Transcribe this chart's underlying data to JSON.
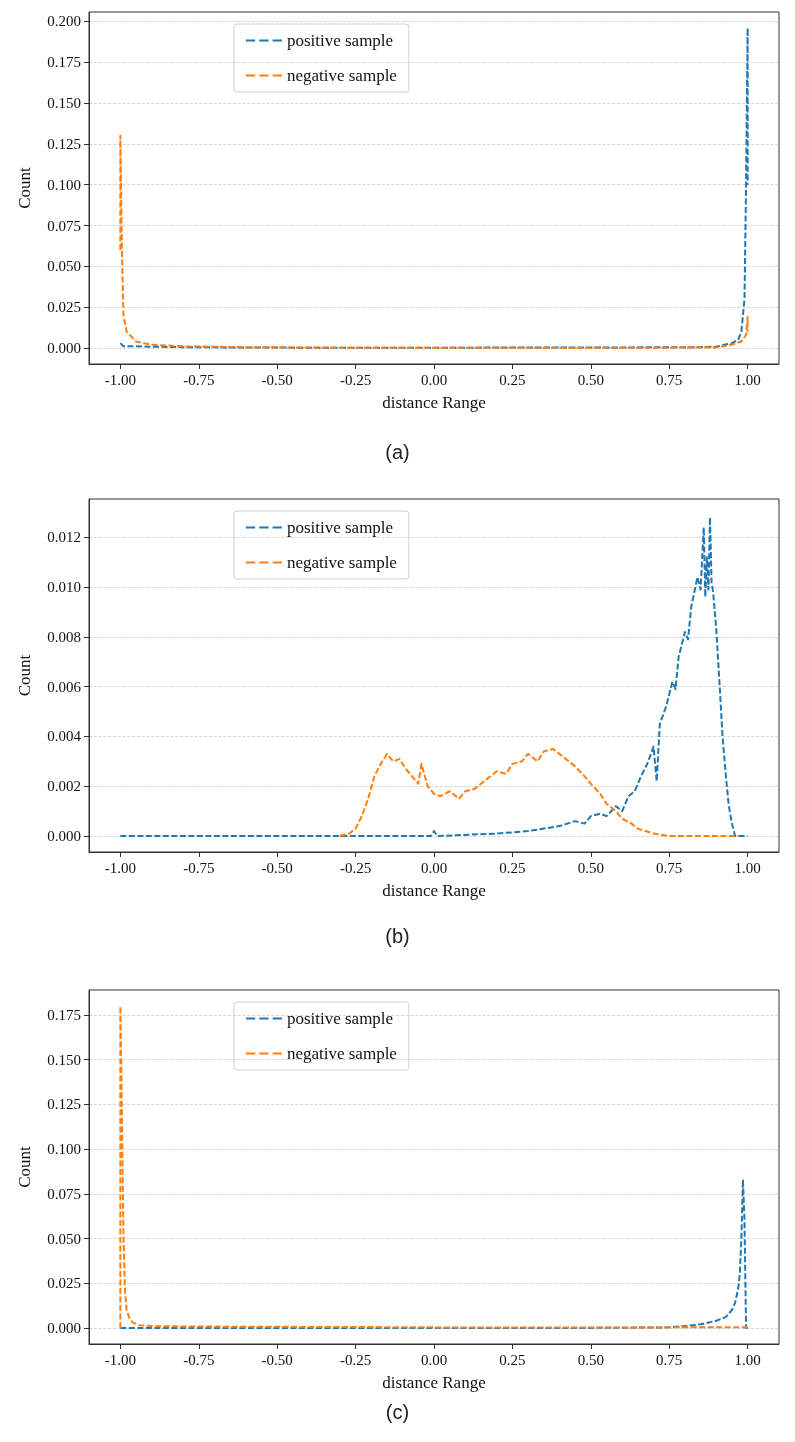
{
  "chart_data": [
    {
      "type": "line",
      "xlabel": "distance Range",
      "ylabel": "Count",
      "annotations": [
        "(a)"
      ],
      "legend": "top left",
      "grid": "y",
      "line_style": "dashed",
      "marker": "none",
      "xlim": [
        -1.1,
        1.1
      ],
      "ylim": [
        -0.0098,
        0.2058
      ],
      "xticks": [
        {
          "value": -1,
          "label": "-1.00"
        },
        {
          "value": -0.75,
          "label": "-0.75"
        },
        {
          "value": -0.5,
          "label": "-0.50"
        },
        {
          "value": -0.25,
          "label": "-0.25"
        },
        {
          "value": 0,
          "label": "0.00"
        },
        {
          "value": 0.25,
          "label": "0.25"
        },
        {
          "value": 0.5,
          "label": "0.50"
        },
        {
          "value": 0.75,
          "label": "0.75"
        },
        {
          "value": 1,
          "label": "1.00"
        }
      ],
      "yticks": [
        {
          "value": 0,
          "label": "0.000"
        },
        {
          "value": 0.025,
          "label": "0.025"
        },
        {
          "value": 0.05,
          "label": "0.050"
        },
        {
          "value": 0.075,
          "label": "0.075"
        },
        {
          "value": 0.1,
          "label": "0.100"
        },
        {
          "value": 0.125,
          "label": "0.125"
        },
        {
          "value": 0.15,
          "label": "0.150"
        },
        {
          "value": 0.175,
          "label": "0.175"
        },
        {
          "value": 0.2,
          "label": "0.200"
        }
      ],
      "series": [
        {
          "name": "positive sample",
          "color": "#1f77b4",
          "x": [
            -1,
            -0.99,
            -0.95,
            -0.9,
            -0.8,
            -0.6,
            -0.4,
            0,
            0.5,
            0.85,
            0.9,
            0.95,
            0.97,
            0.98,
            0.99,
            0.995,
            1,
            1
          ],
          "values": [
            0.003,
            0.001,
            0.001,
            0.0008,
            0.0005,
            0.0003,
            0.0002,
            0.0002,
            0.0003,
            0.0005,
            0.0008,
            0.003,
            0.005,
            0.01,
            0.03,
            0.1,
            0.196,
            0.1
          ]
        },
        {
          "name": "negative sample",
          "color": "#ff7f0e",
          "x": [
            -1,
            -1,
            -0.995,
            -0.99,
            -0.98,
            -0.95,
            -0.9,
            -0.8,
            -0.6,
            -0.3,
            0,
            0.5,
            0.9,
            0.95,
            0.98,
            0.995,
            1,
            1
          ],
          "values": [
            0.06,
            0.13,
            0.06,
            0.02,
            0.01,
            0.004,
            0.002,
            0.001,
            0.0005,
            0.0002,
            0.0001,
            0.0001,
            0.0003,
            0.002,
            0.004,
            0.008,
            0.019,
            0.01
          ]
        }
      ]
    },
    {
      "type": "line",
      "xlabel": "distance Range",
      "ylabel": "Count",
      "annotations": [
        "(b)"
      ],
      "legend": "top left",
      "grid": "y",
      "line_style": "dashed",
      "marker": "none",
      "xlim": [
        -1.1,
        1.1
      ],
      "ylim": [
        -0.00064,
        0.01354
      ],
      "xticks": [
        {
          "value": -1,
          "label": "-1.00"
        },
        {
          "value": -0.75,
          "label": "-0.75"
        },
        {
          "value": -0.5,
          "label": "-0.50"
        },
        {
          "value": -0.25,
          "label": "-0.25"
        },
        {
          "value": 0,
          "label": "0.00"
        },
        {
          "value": 0.25,
          "label": "0.25"
        },
        {
          "value": 0.5,
          "label": "0.50"
        },
        {
          "value": 0.75,
          "label": "0.75"
        },
        {
          "value": 1,
          "label": "1.00"
        }
      ],
      "yticks": [
        {
          "value": 0,
          "label": "0.000"
        },
        {
          "value": 0.002,
          "label": "0.002"
        },
        {
          "value": 0.004,
          "label": "0.004"
        },
        {
          "value": 0.006,
          "label": "0.006"
        },
        {
          "value": 0.008,
          "label": "0.008"
        },
        {
          "value": 0.01,
          "label": "0.010"
        },
        {
          "value": 0.012,
          "label": "0.012"
        }
      ],
      "series": [
        {
          "name": "positive sample",
          "color": "#1f77b4",
          "x": [
            -1,
            -0.5,
            -0.01,
            0,
            0.01,
            0.2,
            0.3,
            0.35,
            0.4,
            0.45,
            0.48,
            0.5,
            0.53,
            0.55,
            0.58,
            0.6,
            0.62,
            0.64,
            0.66,
            0.68,
            0.7,
            0.71,
            0.72,
            0.74,
            0.76,
            0.77,
            0.78,
            0.8,
            0.81,
            0.82,
            0.83,
            0.84,
            0.85,
            0.86,
            0.865,
            0.87,
            0.875,
            0.88,
            0.885,
            0.89,
            0.9,
            0.91,
            0.92,
            0.93,
            0.94,
            0.95,
            0.96,
            1
          ],
          "values": [
            0,
            0,
            0,
            0.0002,
            0,
            0.0001,
            0.0002,
            0.0003,
            0.0004,
            0.0006,
            0.0005,
            0.0008,
            0.0009,
            0.0008,
            0.0012,
            0.001,
            0.0016,
            0.0018,
            0.0024,
            0.0029,
            0.0036,
            0.0022,
            0.0045,
            0.0052,
            0.0062,
            0.0059,
            0.0072,
            0.0082,
            0.0079,
            0.0092,
            0.0098,
            0.0104,
            0.0099,
            0.0124,
            0.0096,
            0.0112,
            0.0099,
            0.0128,
            0.0102,
            0.0098,
            0.0083,
            0.0062,
            0.004,
            0.0025,
            0.0012,
            0.0005,
            0,
            0
          ]
        },
        {
          "name": "negative sample",
          "color": "#ff7f0e",
          "x": [
            -0.3,
            -0.27,
            -0.25,
            -0.23,
            -0.21,
            -0.19,
            -0.17,
            -0.15,
            -0.13,
            -0.11,
            -0.09,
            -0.07,
            -0.05,
            -0.04,
            -0.02,
            0,
            0.02,
            0.05,
            0.08,
            0.1,
            0.13,
            0.15,
            0.18,
            0.2,
            0.23,
            0.25,
            0.28,
            0.3,
            0.33,
            0.35,
            0.38,
            0.4,
            0.43,
            0.45,
            0.48,
            0.5,
            0.53,
            0.55,
            0.58,
            0.6,
            0.63,
            0.65,
            0.7,
            0.75,
            0.8,
            0.9,
            0.97
          ],
          "values": [
            0,
            0.0001,
            0.0003,
            0.0008,
            0.0015,
            0.0024,
            0.0029,
            0.0033,
            0.003,
            0.0031,
            0.0027,
            0.0024,
            0.0021,
            0.0029,
            0.002,
            0.0017,
            0.0016,
            0.0018,
            0.0015,
            0.0018,
            0.0019,
            0.0021,
            0.0024,
            0.0026,
            0.0025,
            0.0029,
            0.003,
            0.0033,
            0.003,
            0.0034,
            0.0035,
            0.0033,
            0.003,
            0.0028,
            0.0024,
            0.0021,
            0.0017,
            0.0013,
            0.001,
            0.0007,
            0.0005,
            0.0003,
            0.0001,
            0,
            0,
            0,
            0
          ]
        }
      ]
    },
    {
      "type": "line",
      "xlabel": "distance Range",
      "ylabel": "Count",
      "annotations": [
        "(c)"
      ],
      "legend": "top left",
      "grid": "y",
      "line_style": "dashed",
      "marker": "none",
      "xlim": [
        -1.1,
        1.1
      ],
      "ylim": [
        -0.009,
        0.189
      ],
      "xticks": [
        {
          "value": -1,
          "label": "-1.00"
        },
        {
          "value": -0.75,
          "label": "-0.75"
        },
        {
          "value": -0.5,
          "label": "-0.50"
        },
        {
          "value": -0.25,
          "label": "-0.25"
        },
        {
          "value": 0,
          "label": "0.00"
        },
        {
          "value": 0.25,
          "label": "0.25"
        },
        {
          "value": 0.5,
          "label": "0.50"
        },
        {
          "value": 0.75,
          "label": "0.75"
        },
        {
          "value": 1,
          "label": "1.00"
        }
      ],
      "yticks": [
        {
          "value": 0,
          "label": "0.000"
        },
        {
          "value": 0.025,
          "label": "0.025"
        },
        {
          "value": 0.05,
          "label": "0.050"
        },
        {
          "value": 0.075,
          "label": "0.075"
        },
        {
          "value": 0.1,
          "label": "0.100"
        },
        {
          "value": 0.125,
          "label": "0.125"
        },
        {
          "value": 0.15,
          "label": "0.150"
        },
        {
          "value": 0.175,
          "label": "0.175"
        }
      ],
      "series": [
        {
          "name": "positive sample",
          "color": "#1f77b4",
          "x": [
            -1,
            0.5,
            0.75,
            0.8,
            0.85,
            0.9,
            0.93,
            0.95,
            0.96,
            0.97,
            0.975,
            0.98,
            0.985,
            0.99,
            0.995,
            1
          ],
          "values": [
            0,
            0,
            0.0003,
            0.001,
            0.002,
            0.004,
            0.006,
            0.01,
            0.014,
            0.022,
            0.03,
            0.05,
            0.083,
            0.06,
            0,
            0
          ]
        },
        {
          "name": "negative sample",
          "color": "#ff7f0e",
          "x": [
            -1,
            -1,
            -0.995,
            -0.99,
            -0.985,
            -0.98,
            -0.97,
            -0.96,
            -0.94,
            -0.9,
            -0.8,
            -0.5,
            -0.25,
            0,
            0.25,
            0.5,
            0.75,
            0.9,
            1
          ],
          "values": [
            0,
            0.18,
            0.12,
            0.05,
            0.02,
            0.01,
            0.005,
            0.003,
            0.0015,
            0.001,
            0.0008,
            0.0006,
            0.0005,
            0.0003,
            0.0002,
            0.0002,
            0.0003,
            0.0004,
            0.0003
          ]
        }
      ]
    }
  ]
}
